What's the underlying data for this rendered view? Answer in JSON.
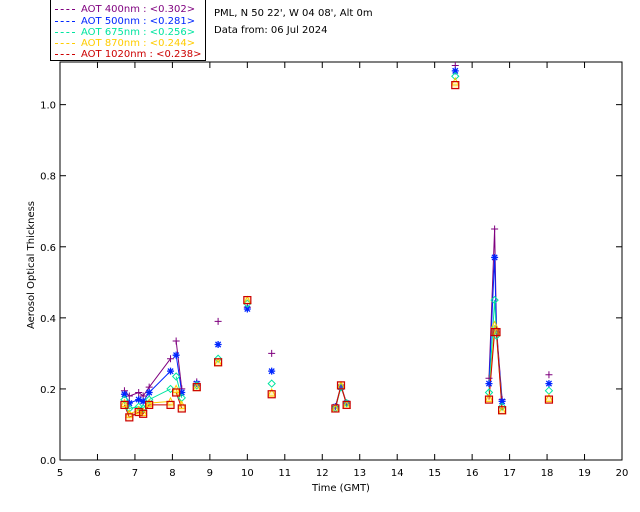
{
  "header": {
    "site": "PML, N 50 22', W 04 08', Alt 0m",
    "date": "Data from: 06 Jul 2024"
  },
  "legend": [
    {
      "label": "AOT  400nm : <0.302>",
      "color": "#7f007f"
    },
    {
      "label": "AOT  500nm : <0.281>",
      "color": "#0026ff"
    },
    {
      "label": "AOT  675nm : <0.256>",
      "color": "#00e5a0"
    },
    {
      "label": "AOT  870nm : <0.244>",
      "color": "#ffcc00"
    },
    {
      "label": "AOT 1020nm : <0.238>",
      "color": "#cc0000"
    }
  ],
  "chart_data": {
    "type": "scatter",
    "xlabel": "Time (GMT)",
    "ylabel": "Aerosol Optical Thickness",
    "xlim": [
      5,
      20
    ],
    "ylim": [
      0,
      1.12
    ],
    "xticks": [
      5,
      6,
      7,
      8,
      9,
      10,
      11,
      12,
      13,
      14,
      15,
      16,
      17,
      18,
      19,
      20
    ],
    "yticks": [
      0.0,
      0.2,
      0.4,
      0.6,
      0.8,
      1.0
    ],
    "x": [
      6.72,
      6.85,
      7.1,
      7.22,
      7.38,
      7.95,
      8.1,
      8.25,
      8.65,
      9.22,
      10.0,
      10.65,
      12.35,
      12.5,
      12.65,
      15.55,
      16.45,
      16.6,
      16.65,
      16.8,
      18.05
    ],
    "series": [
      {
        "name": "AOT  400nm",
        "marker": "plus",
        "color": "#7f007f",
        "values": [
          0.195,
          0.18,
          0.19,
          0.18,
          0.205,
          0.285,
          0.335,
          0.2,
          0.22,
          0.39,
          0.43,
          0.3,
          0.15,
          0.21,
          0.16,
          1.11,
          0.23,
          0.65,
          0.37,
          0.17,
          0.24
        ]
      },
      {
        "name": "AOT  500nm",
        "marker": "star",
        "color": "#0026ff",
        "values": [
          0.185,
          0.16,
          0.17,
          0.165,
          0.19,
          0.25,
          0.295,
          0.19,
          0.215,
          0.325,
          0.425,
          0.25,
          0.15,
          0.205,
          0.16,
          1.095,
          0.215,
          0.57,
          0.36,
          0.165,
          0.215
        ]
      },
      {
        "name": "AOT  675nm",
        "marker": "diamond",
        "color": "#00e5a0",
        "values": [
          0.17,
          0.145,
          0.15,
          0.145,
          0.17,
          0.2,
          0.235,
          0.175,
          0.21,
          0.285,
          0.44,
          0.215,
          0.145,
          0.205,
          0.16,
          1.08,
          0.19,
          0.45,
          0.35,
          0.15,
          0.195
        ]
      },
      {
        "name": "AOT  870nm",
        "marker": "triangle",
        "color": "#ffcc00",
        "values": [
          0.16,
          0.13,
          0.14,
          0.135,
          0.16,
          0.165,
          0.2,
          0.155,
          0.205,
          0.275,
          0.45,
          0.19,
          0.145,
          0.21,
          0.155,
          1.065,
          0.175,
          0.38,
          0.36,
          0.14,
          0.175
        ]
      },
      {
        "name": "AOT 1020nm",
        "marker": "square",
        "color": "#cc0000",
        "values": [
          0.155,
          0.12,
          0.135,
          0.13,
          0.155,
          0.155,
          0.19,
          0.145,
          0.205,
          0.275,
          0.45,
          0.185,
          0.145,
          0.21,
          0.155,
          1.055,
          0.17,
          0.36,
          0.36,
          0.14,
          0.17
        ]
      }
    ],
    "segments": [
      [
        0,
        5
      ],
      [
        6,
        7
      ],
      [
        12,
        14
      ],
      [
        16,
        19
      ]
    ],
    "grid": false,
    "legend_position": "top-left"
  }
}
